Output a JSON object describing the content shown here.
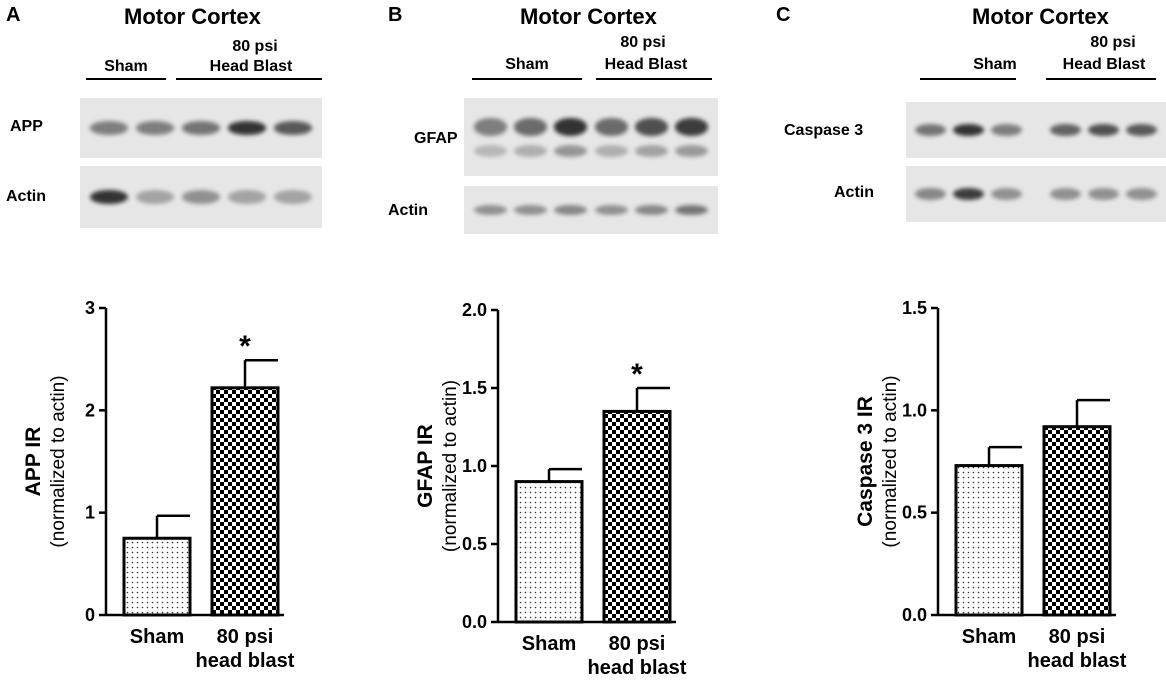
{
  "panels": [
    {
      "letter": "A",
      "title": "Motor Cortex",
      "groups": {
        "sham": "Sham",
        "blast_line1": "80 psi",
        "blast_line2": "Head Blast"
      },
      "blots": [
        {
          "label": "APP",
          "intensities": [
            0.55,
            0.55,
            0.6,
            0.95,
            0.75
          ]
        },
        {
          "label": "Actin",
          "intensities": [
            0.95,
            0.35,
            0.45,
            0.35,
            0.35
          ]
        }
      ]
    },
    {
      "letter": "B",
      "title": "Motor Cortex",
      "groups": {
        "sham": "Sham",
        "blast_line1": "80 psi",
        "blast_line2": "Head Blast"
      },
      "blots": [
        {
          "label": "GFAP",
          "intensities": [
            0.55,
            0.65,
            0.95,
            0.65,
            0.8,
            0.9
          ]
        },
        {
          "label": "Actin",
          "intensities": [
            0.45,
            0.45,
            0.5,
            0.45,
            0.5,
            0.6
          ]
        }
      ]
    },
    {
      "letter": "C",
      "title": "Motor Cortex",
      "groups": {
        "sham": "Sham",
        "blast_line1": "80 psi",
        "blast_line2": "Head Blast"
      },
      "blots": [
        {
          "label": "Caspase 3",
          "intensities": [
            0.6,
            0.95,
            0.55,
            0.7,
            0.8,
            0.75
          ]
        },
        {
          "label": "Actin",
          "intensities": [
            0.5,
            0.9,
            0.45,
            0.45,
            0.45,
            0.45
          ]
        }
      ]
    }
  ],
  "chart_data": [
    {
      "type": "bar",
      "categories": [
        "Sham",
        "80 psi\nhead blast"
      ],
      "values": [
        0.75,
        2.22
      ],
      "errors": [
        0.22,
        0.27
      ],
      "significance": [
        "",
        "*"
      ],
      "ylabel_main": "APP  IR",
      "ylabel_sub": "(normalized to actin)",
      "ylim": [
        0,
        3
      ],
      "yticks": [
        "0",
        "1",
        "2",
        "3"
      ],
      "ytick_values": [
        0,
        1,
        2,
        3
      ],
      "patterns": [
        "dots",
        "checker"
      ]
    },
    {
      "type": "bar",
      "categories": [
        "Sham",
        "80 psi\nhead blast"
      ],
      "values": [
        0.9,
        1.35
      ],
      "errors": [
        0.08,
        0.15
      ],
      "significance": [
        "",
        "*"
      ],
      "ylabel_main": "GFAP  IR",
      "ylabel_sub": "(normalized to actin)",
      "ylim": [
        0,
        2.0
      ],
      "yticks": [
        "0.0",
        "0.5",
        "1.0",
        "1.5",
        "2.0"
      ],
      "ytick_values": [
        0,
        0.5,
        1.0,
        1.5,
        2.0
      ],
      "patterns": [
        "dots",
        "checker"
      ]
    },
    {
      "type": "bar",
      "categories": [
        "Sham",
        "80 psi\nhead blast"
      ],
      "values": [
        0.73,
        0.92
      ],
      "errors": [
        0.09,
        0.13
      ],
      "significance": [
        "",
        ""
      ],
      "ylabel_main": "Caspase 3  IR",
      "ylabel_sub": "(normalized to actin)",
      "ylim": [
        0,
        1.5
      ],
      "yticks": [
        "0.0",
        "0.5",
        "1.0",
        "1.5"
      ],
      "ytick_values": [
        0,
        0.5,
        1.0,
        1.5
      ],
      "patterns": [
        "dots",
        "checker"
      ]
    }
  ]
}
